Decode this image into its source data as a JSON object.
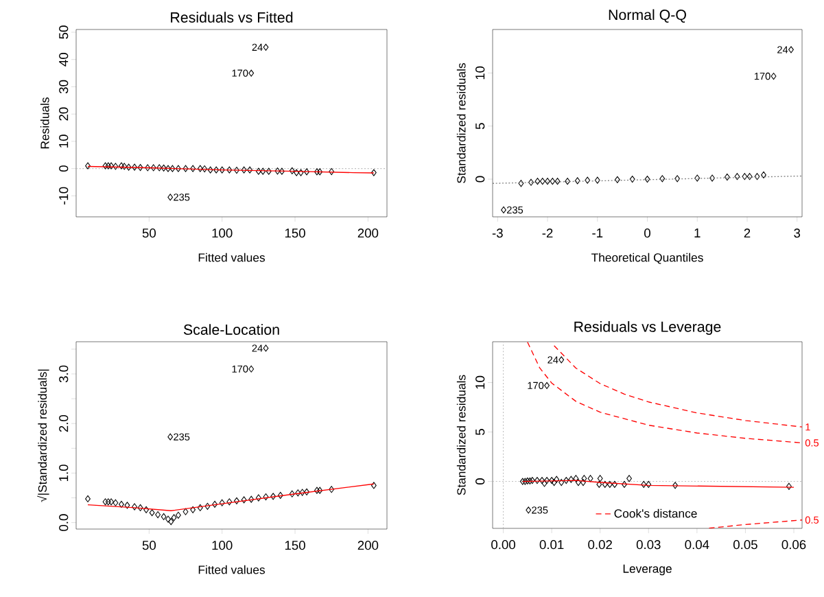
{
  "chart_data": [
    {
      "type": "scatter",
      "title": "Residuals vs Fitted",
      "xlabel": "Fitted values",
      "ylabel": "Residuals",
      "xlim": [
        0,
        213
      ],
      "ylim": [
        -17.7,
        51
      ],
      "xticks": [
        50,
        100,
        150,
        200
      ],
      "yticks": [
        -10,
        0,
        10,
        20,
        30,
        40,
        50
      ],
      "series": [
        {
          "type": "scatter",
          "marker": "diamond",
          "color": "#000000",
          "x": [
            8,
            20,
            22,
            24,
            27,
            31,
            33,
            36,
            40,
            44,
            49,
            53,
            57,
            60,
            63,
            66,
            70,
            75,
            80,
            85,
            88,
            92,
            96,
            100,
            105,
            110,
            115,
            119,
            125,
            128,
            132,
            138,
            141,
            148,
            151,
            154,
            158,
            165,
            167,
            175,
            204,
            130,
            120,
            64.5
          ],
          "values": [
            1,
            1,
            1,
            1,
            0.8,
            1,
            0.8,
            0.5,
            0.5,
            0.4,
            0.3,
            0.3,
            0.3,
            0.2,
            0,
            0,
            0,
            0,
            0,
            0,
            -0.1,
            -0.5,
            -0.5,
            -0.5,
            -0.5,
            -0.6,
            -0.5,
            -0.5,
            -1,
            -1,
            -1,
            -0.9,
            -1,
            -0.8,
            -1.5,
            -1.5,
            -1.2,
            -1.2,
            -1.2,
            -1.1,
            -1.5,
            44.5,
            35,
            -10.5
          ]
        },
        {
          "type": "line",
          "color": "#ff0000",
          "x": [
            8,
            50,
            100,
            150,
            190,
            204
          ],
          "values": [
            0.8,
            0.3,
            -0.5,
            -1.0,
            -1.5,
            -1.6
          ]
        }
      ],
      "ref_lines": [
        {
          "axis": "y",
          "value": 0,
          "color": "#bebebe",
          "line_style": "dotted"
        }
      ],
      "annotations": [
        {
          "text": "24",
          "x": 130,
          "y": 44.5
        },
        {
          "text": "170",
          "x": 120,
          "y": 35
        },
        {
          "text": "235",
          "x": 64.5,
          "y": -10.5
        }
      ]
    },
    {
      "type": "scatter",
      "title": "Normal Q-Q",
      "xlabel": "Theoretical Quantiles",
      "ylabel": "Standardized residuals",
      "xlim": [
        -3.1,
        3.1
      ],
      "ylim": [
        -3.55,
        14.1
      ],
      "xticks": [
        -3,
        -2,
        -1,
        0,
        1,
        2,
        3
      ],
      "yticks": [
        0,
        5,
        10
      ],
      "series": [
        {
          "type": "scatter",
          "marker": "diamond",
          "color": "#000000",
          "x": [
            -2.88,
            -2.53,
            -2.33,
            -2.2,
            -2.1,
            -2.0,
            -1.9,
            -1.8,
            -1.6,
            -1.4,
            -1.2,
            -1.0,
            -0.6,
            -0.3,
            0,
            0.3,
            0.6,
            1.0,
            1.3,
            1.6,
            1.8,
            1.95,
            2.05,
            2.2,
            2.33,
            2.53,
            2.88
          ],
          "values": [
            -2.9,
            -0.4,
            -0.3,
            -0.2,
            -0.2,
            -0.2,
            -0.2,
            -0.2,
            -0.2,
            -0.15,
            -0.1,
            -0.1,
            -0.05,
            0,
            0,
            0.05,
            0.05,
            0.1,
            0.1,
            0.2,
            0.25,
            0.25,
            0.25,
            0.25,
            0.4,
            9.7,
            12.2
          ]
        },
        {
          "type": "line",
          "color": "#808080",
          "line_style": "dotted",
          "x": [
            -3.1,
            3.1
          ],
          "values": [
            -0.4,
            0.3
          ]
        }
      ],
      "annotations": [
        {
          "text": "24",
          "x": 2.88,
          "y": 12.2
        },
        {
          "text": "170",
          "x": 2.53,
          "y": 9.7
        },
        {
          "text": "235",
          "x": -2.88,
          "y": -2.9
        }
      ]
    },
    {
      "type": "scatter",
      "title": "Scale-Location",
      "xlabel": "Fitted values",
      "ylabel": "√|Standardized residuals|",
      "xlim": [
        0,
        213
      ],
      "ylim": [
        -0.13,
        3.65
      ],
      "xticks": [
        50,
        100,
        150,
        200
      ],
      "yticks": [
        {
          "value": 0,
          "label": "0.0"
        },
        {
          "value": 0.5,
          "label": null
        },
        {
          "value": 1,
          "label": "1.0"
        },
        {
          "value": 1.5,
          "label": null
        },
        {
          "value": 2,
          "label": "2.0"
        },
        {
          "value": 2.5,
          "label": null
        },
        {
          "value": 3,
          "label": "3.0"
        },
        {
          "value": 3.5,
          "label": null
        }
      ],
      "series": [
        {
          "type": "scatter",
          "marker": "diamond",
          "color": "#000000",
          "x": [
            8,
            20,
            22,
            24,
            27,
            31,
            35,
            40,
            44,
            48,
            52,
            56,
            60,
            63,
            65,
            67,
            70,
            75,
            80,
            85,
            90,
            95,
            100,
            105,
            110,
            115,
            120,
            125,
            130,
            135,
            140,
            148,
            152,
            155,
            158,
            165,
            167,
            175,
            204,
            130,
            120,
            64.5
          ],
          "values": [
            0.48,
            0.42,
            0.42,
            0.42,
            0.4,
            0.37,
            0.35,
            0.32,
            0.3,
            0.26,
            0.2,
            0.16,
            0.12,
            0.07,
            0.02,
            0.1,
            0.15,
            0.22,
            0.26,
            0.3,
            0.33,
            0.37,
            0.4,
            0.42,
            0.44,
            0.46,
            0.47,
            0.5,
            0.52,
            0.53,
            0.55,
            0.58,
            0.6,
            0.61,
            0.62,
            0.65,
            0.65,
            0.67,
            0.75,
            3.52,
            3.1,
            1.73
          ]
        },
        {
          "type": "line",
          "color": "#ff0000",
          "x": [
            8,
            40,
            65,
            100,
            150,
            204
          ],
          "values": [
            0.36,
            0.3,
            0.24,
            0.38,
            0.58,
            0.78
          ]
        }
      ],
      "annotations": [
        {
          "text": "24",
          "x": 130,
          "y": 3.52
        },
        {
          "text": "170",
          "x": 120,
          "y": 3.1
        },
        {
          "text": "235",
          "x": 64.5,
          "y": 1.73
        }
      ]
    },
    {
      "type": "scatter",
      "title": "Residuals vs Leverage",
      "xlabel": "Leverage",
      "ylabel": "Standardized residuals",
      "legend": "bottom",
      "xlim": [
        -0.0022,
        0.0617
      ],
      "ylim": [
        -4.75,
        14.13
      ],
      "xticks": [
        {
          "value": 0,
          "label": "0.00"
        },
        {
          "value": 0.01,
          "label": "0.01"
        },
        {
          "value": 0.02,
          "label": "0.02"
        },
        {
          "value": 0.03,
          "label": "0.03"
        },
        {
          "value": 0.04,
          "label": "0.04"
        },
        {
          "value": 0.05,
          "label": "0.05"
        },
        {
          "value": 0.06,
          "label": "0.06"
        }
      ],
      "yticks": [
        0,
        5,
        10
      ],
      "series": [
        {
          "type": "scatter",
          "marker": "diamond",
          "color": "#000000",
          "x": [
            0.004,
            0.0045,
            0.005,
            0.0055,
            0.006,
            0.007,
            0.008,
            0.0085,
            0.009,
            0.01,
            0.0105,
            0.011,
            0.012,
            0.013,
            0.014,
            0.015,
            0.0155,
            0.0165,
            0.0167,
            0.018,
            0.02,
            0.0198,
            0.021,
            0.022,
            0.023,
            0.025,
            0.026,
            0.029,
            0.03,
            0.0355,
            0.059,
            0.012,
            0.009,
            0.0052
          ],
          "values": [
            0,
            0,
            0.05,
            0.05,
            0.1,
            0.1,
            0.1,
            -0.2,
            0.1,
            0.1,
            -0.1,
            0.2,
            -0.1,
            0.1,
            0.2,
            0.3,
            -0.1,
            -0.1,
            0.3,
            0.3,
            0.3,
            -0.3,
            -0.3,
            -0.3,
            -0.3,
            -0.3,
            0.3,
            -0.3,
            -0.3,
            -0.4,
            -0.5,
            12.3,
            9.7,
            -2.9
          ]
        },
        {
          "type": "line",
          "color": "#ff0000",
          "x": [
            0.004,
            0.015,
            0.02,
            0.03,
            0.06
          ],
          "values": [
            0,
            0.1,
            -0.1,
            -0.4,
            -0.6
          ]
        },
        {
          "type": "line",
          "name": "Cook's distance",
          "color": "#ff0000",
          "line_style": "dashed",
          "x": [
            0.0105,
            0.015,
            0.02,
            0.025,
            0.03,
            0.04,
            0.05,
            0.0617,
            null,
            0.005,
            0.0075,
            0.01,
            0.015,
            0.02,
            0.03,
            0.04,
            0.05,
            0.0617,
            null,
            0.0425,
            0.05,
            0.0617
          ],
          "values": [
            13.73,
            11.46,
            9.9,
            8.83,
            8.04,
            6.93,
            6.16,
            5.51,
            null,
            14.1,
            11.5,
            9.95,
            8.1,
            7.0,
            5.69,
            4.9,
            4.36,
            3.9,
            null,
            -4.73,
            -4.36,
            -3.9
          ]
        }
      ],
      "ref_lines": [
        {
          "axis": "y",
          "value": 0,
          "color": "#bebebe",
          "line_style": "dotted"
        },
        {
          "axis": "x",
          "value": 0,
          "color": "#bebebe",
          "line_style": "dotted"
        }
      ],
      "annotations": [
        {
          "text": "24",
          "x": 0.012,
          "y": 12.3
        },
        {
          "text": "170",
          "x": 0.009,
          "y": 9.7
        },
        {
          "text": "235",
          "x": 0.0052,
          "y": -2.9
        },
        {
          "text": "1",
          "x": 0.0617,
          "y": 5.51
        },
        {
          "text": "0.5",
          "x": 0.0617,
          "y": 3.9
        },
        {
          "text": "0.5",
          "x": 0.0617,
          "y": -3.9
        }
      ]
    }
  ]
}
